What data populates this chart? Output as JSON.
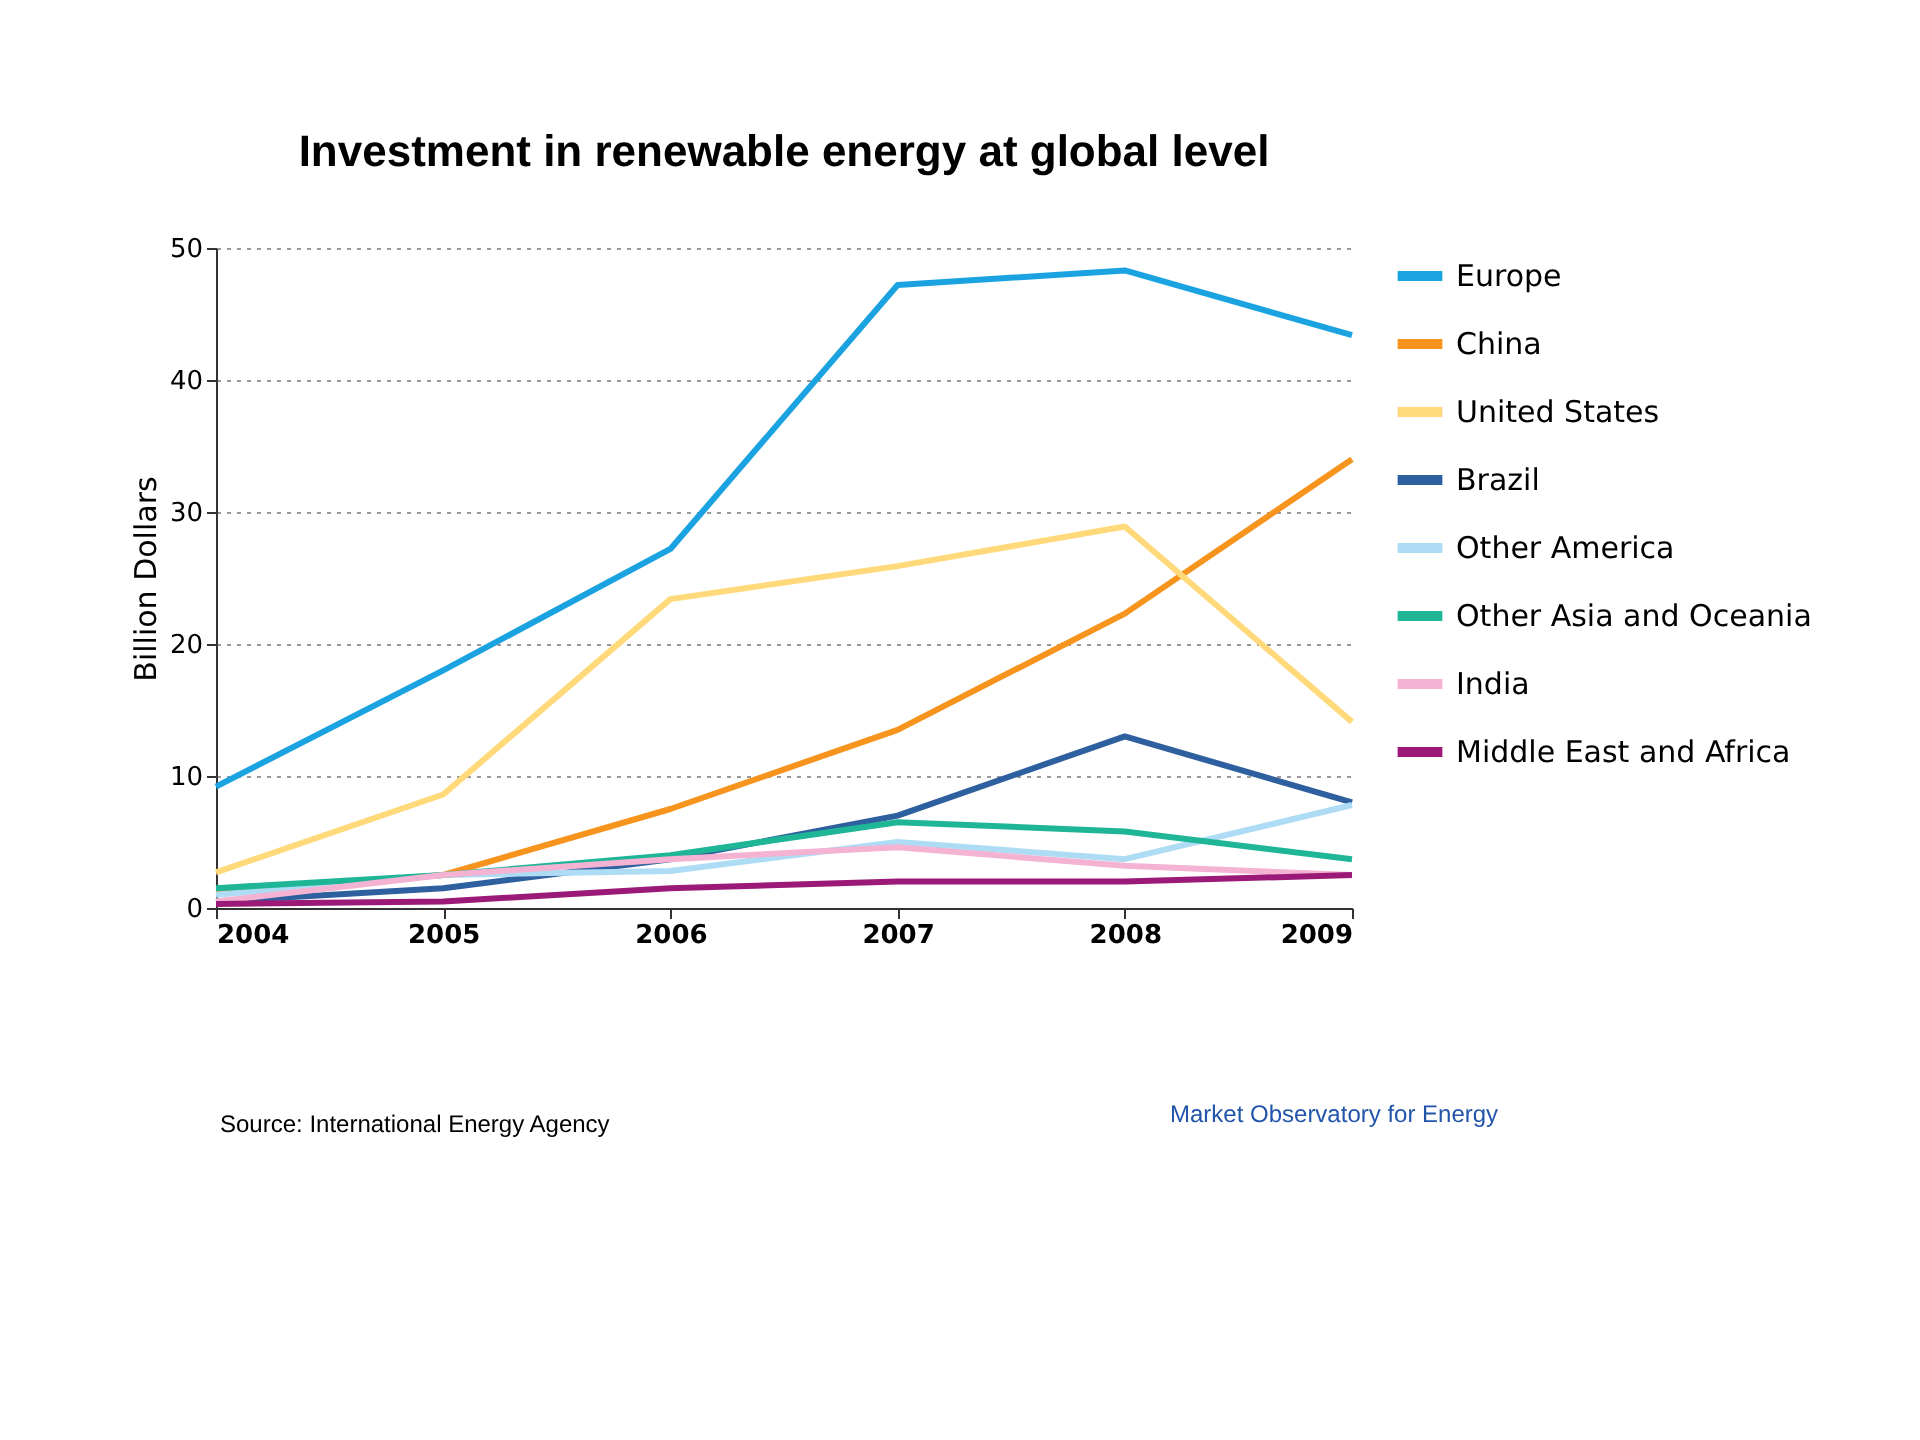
{
  "chart_data": {
    "type": "line",
    "title": "Investment in renewable energy at global level",
    "ylabel": "Billion Dollars",
    "x": [
      2004,
      2005,
      2006,
      2007,
      2008,
      2009
    ],
    "xlim": [
      2004,
      2009
    ],
    "xticks": [
      2004,
      2005,
      2006,
      2007,
      2008,
      2009
    ],
    "ylim": [
      0,
      50
    ],
    "yticks": [
      0,
      10,
      20,
      30,
      40,
      50
    ],
    "grid": "y",
    "legend": "right",
    "marker": "none",
    "line_style": "solid",
    "series": [
      {
        "name": "Europe",
        "color": "#1aa3e0",
        "values": [
          9.2,
          18,
          27.2,
          47.2,
          48.3,
          43.4
        ]
      },
      {
        "name": "China",
        "color": "#f7941d",
        "values": [
          1.2,
          2.5,
          7.5,
          13.5,
          22.3,
          34
        ]
      },
      {
        "name": "United States",
        "color": "#ffd97a",
        "values": [
          2.7,
          8.6,
          23.4,
          25.9,
          28.9,
          14.1
        ]
      },
      {
        "name": "Brazil",
        "color": "#2e5f9e",
        "values": [
          0.5,
          1.5,
          3.7,
          7,
          13,
          8
        ]
      },
      {
        "name": "Other America",
        "color": "#aedcf5",
        "values": [
          1,
          2.5,
          2.8,
          5,
          3.7,
          7.8
        ]
      },
      {
        "name": "Other Asia and Oceania",
        "color": "#1fb597",
        "values": [
          1.5,
          2.5,
          4,
          6.5,
          5.8,
          3.7
        ]
      },
      {
        "name": "India",
        "color": "#f5b3d3",
        "values": [
          0.5,
          2.5,
          3.7,
          4.6,
          3.2,
          2.5
        ]
      },
      {
        "name": "Middle East and Africa",
        "color": "#9b1a78",
        "values": [
          0.3,
          0.5,
          1.5,
          2,
          2,
          2.5
        ]
      }
    ],
    "annotations": [
      "Source: International Energy Agency",
      "Market Observatory for Energy"
    ]
  }
}
